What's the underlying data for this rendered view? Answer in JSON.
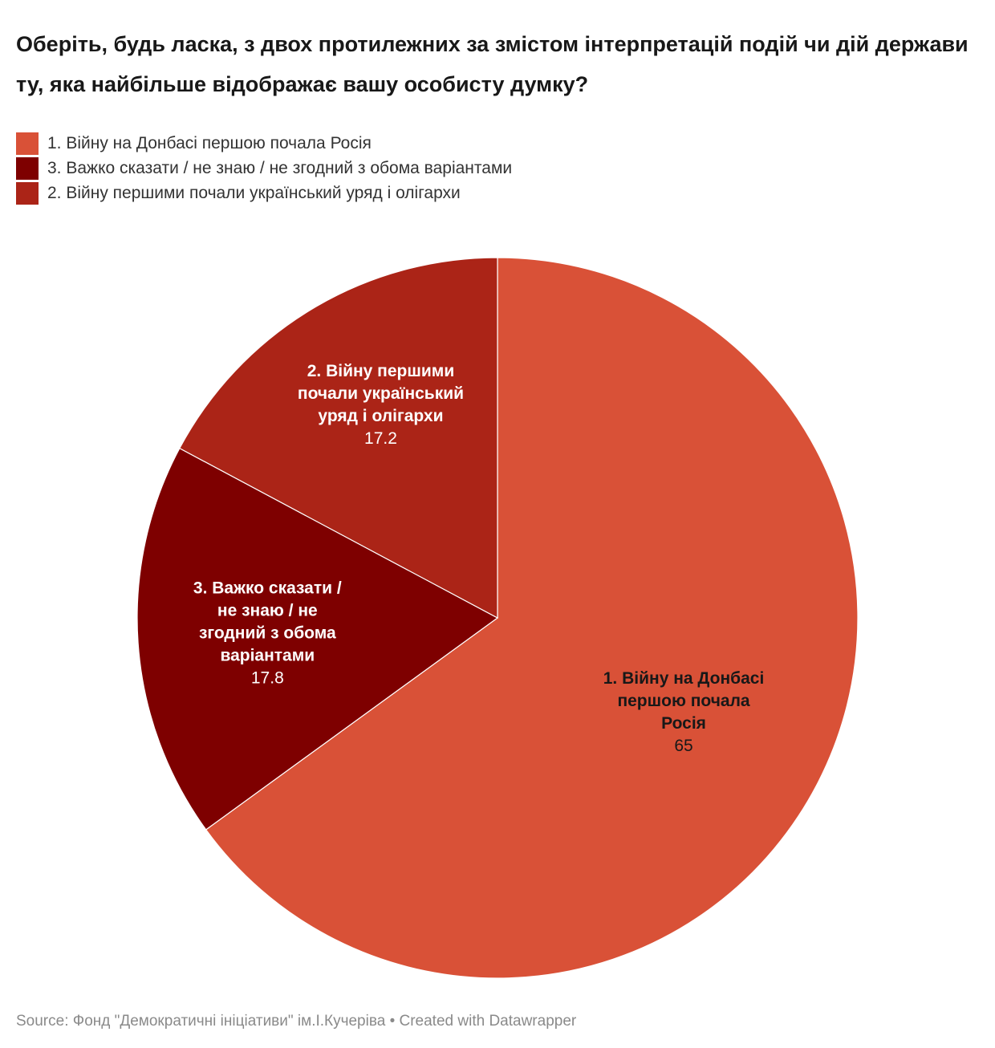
{
  "title": "Оберіть, будь ласка, з двох протилежних за змістом інтерпретацій подій чи дій держави ту, яка найбільше відображає вашу особисту думку?",
  "legend": [
    {
      "label": "1.   Війну на Донбасі першою почала Росія",
      "color": "#d95137"
    },
    {
      "label": "3.   Важко сказати / не знаю / не згодний з обома варіантами",
      "color": "#7e0000"
    },
    {
      "label": "2.   Війну першими почали український уряд і олігархи",
      "color": "#ab2417"
    }
  ],
  "chart_data": {
    "type": "pie",
    "slices": [
      {
        "label": "1.   Війну на Донбасі першою почала Росія",
        "label_lines": [
          "1.   Війну на Донбасі",
          "першою почала",
          "Росія"
        ],
        "value": 65,
        "value_text": "65",
        "color": "#d95137",
        "label_color": "#181818"
      },
      {
        "label": "3.   Важко сказати / не знаю / не згодний з обома варіантами",
        "label_lines": [
          "3.   Важко сказати /",
          "не знаю / не",
          "згодний з обома",
          "варіантами"
        ],
        "value": 17.8,
        "value_text": "17.8",
        "color": "#7e0000",
        "label_color": "#ffffff"
      },
      {
        "label": "2.   Війну першими почали український уряд і олігархи",
        "label_lines": [
          "2.   Війну першими",
          "почали український",
          "уряд і олігархи"
        ],
        "value": 17.2,
        "value_text": "17.2",
        "color": "#ab2417",
        "label_color": "#ffffff"
      }
    ]
  },
  "footer": "Source: Фонд \"Демократичні ініціативи\" ім.І.Кучеріва • Created with Datawrapper"
}
